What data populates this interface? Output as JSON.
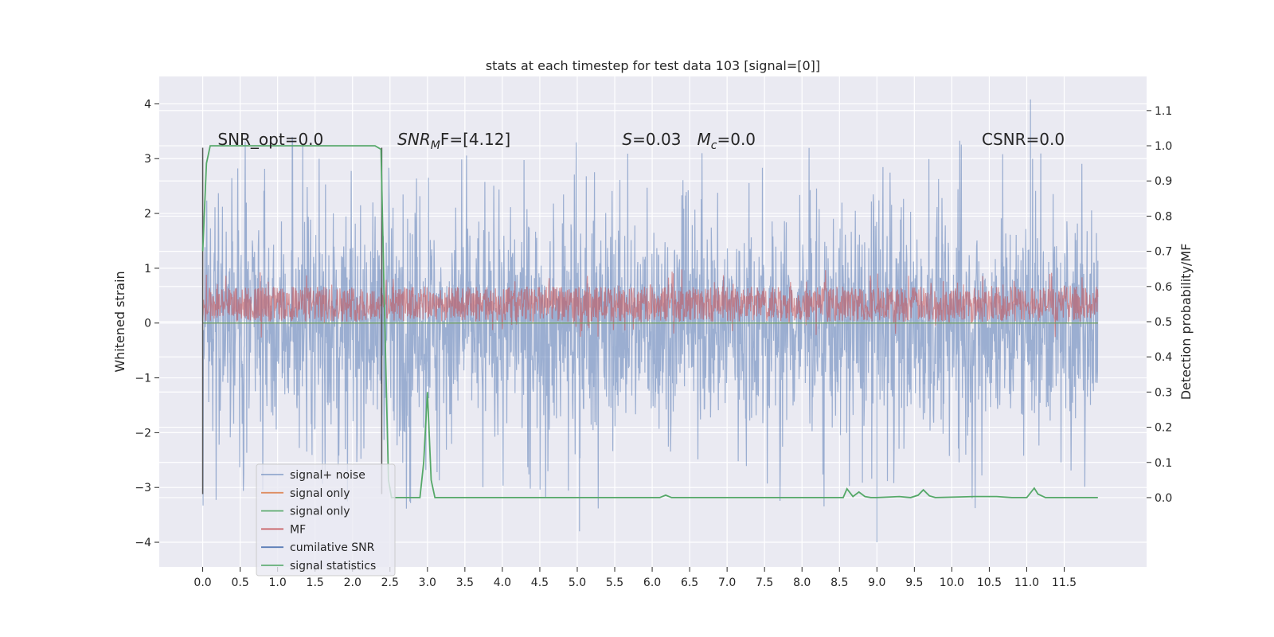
{
  "chart_data": {
    "type": "line",
    "title": "stats at each timestep for test data 103 [signal=[0]]",
    "xlabel": "",
    "ylabel": "Whitened strain",
    "y2label": "Detection probability/MF",
    "xlim": [
      -0.58,
      12.6
    ],
    "ylim": [
      -4.45,
      4.5
    ],
    "y2lim": [
      -0.197,
      1.197
    ],
    "x_ticks": [
      "0.0",
      "0.5",
      "1.0",
      "1.5",
      "2.0",
      "2.5",
      "3.0",
      "3.5",
      "4.0",
      "4.5",
      "5.0",
      "5.5",
      "6.0",
      "6.5",
      "7.0",
      "7.5",
      "8.0",
      "8.5",
      "9.0",
      "9.5",
      "10.0",
      "10.5",
      "11.0",
      "11.5"
    ],
    "y_ticks": [
      "4",
      "3",
      "2",
      "1",
      "0",
      "−1",
      "−2",
      "−3",
      "−4"
    ],
    "y2_ticks": [
      "1.1",
      "1.0",
      "0.9",
      "0.8",
      "0.7",
      "0.6",
      "0.5",
      "0.4",
      "0.3",
      "0.2",
      "0.1",
      "0.0"
    ],
    "grid": true,
    "legend_placement": "lower-left",
    "annotations": [
      {
        "label": "SNR_opt=0.0",
        "x": 0.2,
        "y": 3.25
      },
      {
        "label": "SNR",
        "sub": "M",
        "after": "F=[4.12]",
        "italic": true,
        "x": 2.6,
        "y": 3.25
      },
      {
        "label": "S",
        "after": "=0.03",
        "italic": true,
        "x": 5.6,
        "y": 3.25
      },
      {
        "label": "M",
        "sub": "c",
        "after": "=0.0",
        "italic": true,
        "x": 6.6,
        "y": 3.25
      },
      {
        "label": "CSNR=0.0",
        "x": 10.4,
        "y": 3.25
      }
    ],
    "window_markers_x": [
      0.0,
      2.39
    ],
    "series": [
      {
        "name": "signal+ noise",
        "color": "#4c72b0",
        "axis": "left",
        "kind": "noise",
        "x_range": [
          0.0,
          11.95
        ],
        "typical_range": [
          -1.3,
          1.3
        ],
        "extremes": [
          {
            "x": 11.05,
            "y": 4.08
          },
          {
            "x": 9.0,
            "y": -4.0
          },
          {
            "x": 5.03,
            "y": -3.8
          }
        ]
      },
      {
        "name": "signal only",
        "color": "#dd8452",
        "axis": "left",
        "kind": "flat",
        "value": 0.0
      },
      {
        "name": "signal only",
        "color": "#55a868",
        "axis": "left",
        "kind": "flat",
        "value": 0.0
      },
      {
        "name": "MF",
        "color": "#c44e52",
        "axis": "right",
        "kind": "band",
        "x_range": [
          0.0,
          11.95
        ],
        "typical_range": [
          0.5,
          0.6
        ]
      },
      {
        "name": "cumilative SNR",
        "color": "#4c72b0",
        "axis": "right",
        "kind": "flat",
        "value": 0.0
      },
      {
        "name": "signal statistics",
        "color": "#55a868",
        "axis": "right",
        "kind": "line",
        "x": [
          0.0,
          0.05,
          0.1,
          0.3,
          2.3,
          2.38,
          2.42,
          2.48,
          2.52,
          2.6,
          2.9,
          2.95,
          3.0,
          3.05,
          3.1,
          3.2,
          6.1,
          6.18,
          6.26,
          6.4,
          8.55,
          8.6,
          8.68,
          8.76,
          8.84,
          8.92,
          9.0,
          9.3,
          9.45,
          9.55,
          9.62,
          9.7,
          9.78,
          10.3,
          10.6,
          10.8,
          11.0,
          11.1,
          11.15,
          11.25,
          11.4,
          11.95
        ],
        "y": [
          0.7,
          0.95,
          1.0,
          1.0,
          1.0,
          0.99,
          0.6,
          0.05,
          0.0,
          0.0,
          0.0,
          0.1,
          0.3,
          0.05,
          0.0,
          0.0,
          0.0,
          0.007,
          0.0,
          0.0,
          0.0,
          0.025,
          0.003,
          0.016,
          0.003,
          0.0,
          0.0,
          0.003,
          0.0,
          0.007,
          0.022,
          0.005,
          0.0,
          0.003,
          0.003,
          0.0,
          0.0,
          0.027,
          0.01,
          0.0,
          0.0,
          0.0
        ]
      }
    ]
  }
}
